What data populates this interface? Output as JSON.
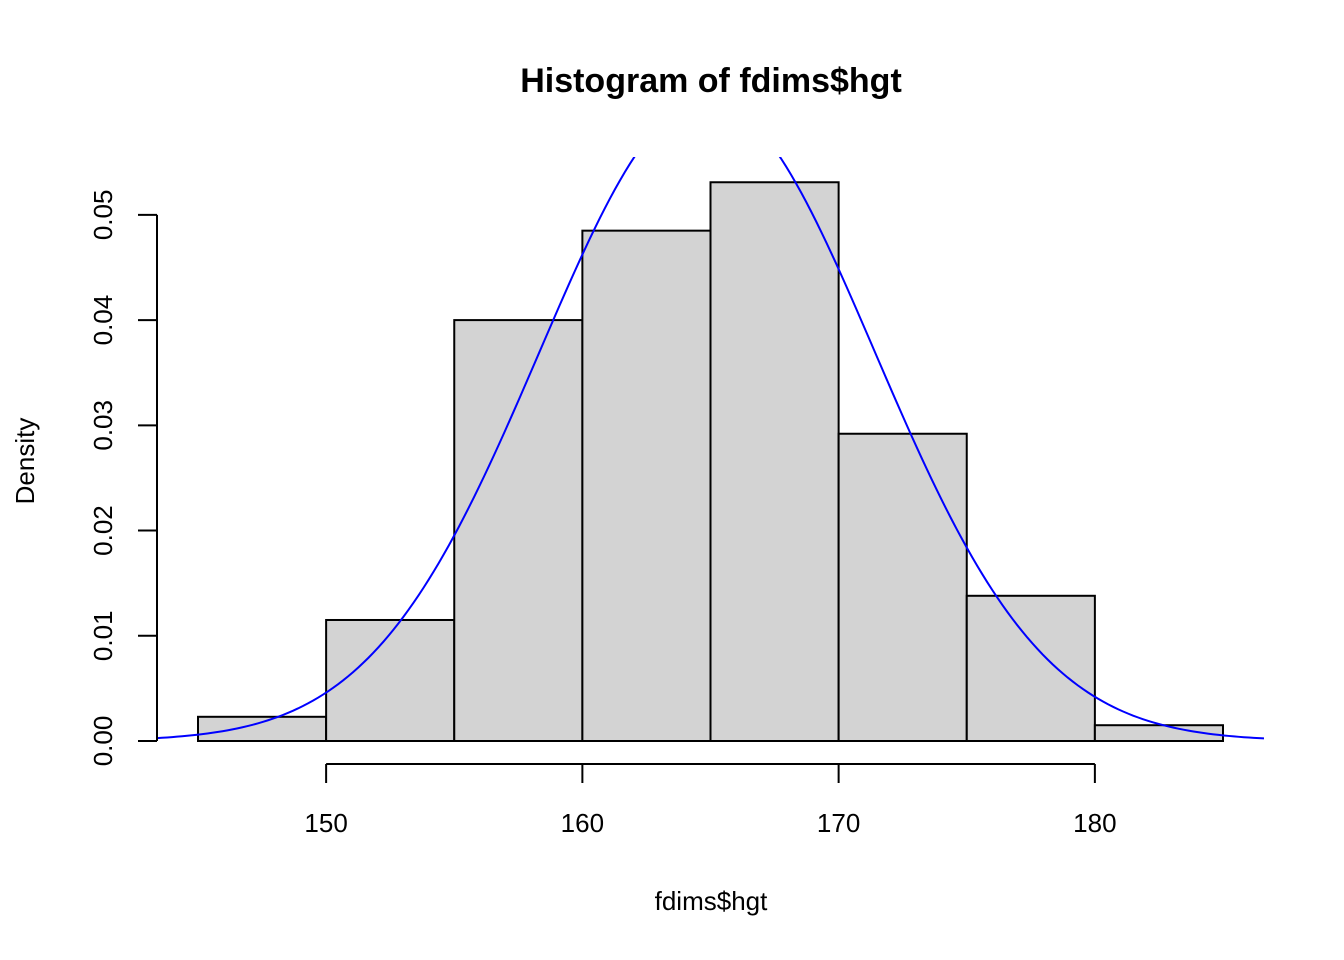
{
  "chart_data": {
    "type": "bar",
    "title": "Histogram of fdims$hgt",
    "xlabel": "fdims$hgt",
    "ylabel": "Density",
    "bins": [
      {
        "from": 145,
        "to": 150,
        "density": 0.0023
      },
      {
        "from": 150,
        "to": 155,
        "density": 0.0115
      },
      {
        "from": 155,
        "to": 160,
        "density": 0.04
      },
      {
        "from": 160,
        "to": 165,
        "density": 0.0485
      },
      {
        "from": 165,
        "to": 170,
        "density": 0.0531
      },
      {
        "from": 170,
        "to": 175,
        "density": 0.0292
      },
      {
        "from": 175,
        "to": 180,
        "density": 0.0138
      },
      {
        "from": 180,
        "to": 185,
        "density": 0.0015
      }
    ],
    "x_ticks": [
      150,
      160,
      170,
      180
    ],
    "y_ticks": [
      "0.00",
      "0.01",
      "0.02",
      "0.03",
      "0.04",
      "0.05"
    ],
    "xlim": [
      143.4,
      186.6
    ],
    "ylim": [
      0,
      0.0555
    ],
    "grid": false,
    "bar_fill": "#d3d3d3",
    "bar_stroke": "#000000",
    "curve": {
      "kind": "normal density",
      "mean": 164.87,
      "sd": 6.54,
      "color": "#0000ff"
    }
  }
}
